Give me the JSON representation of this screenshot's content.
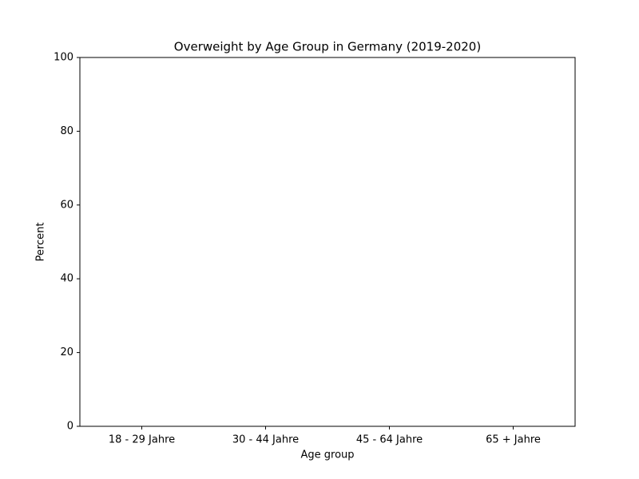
{
  "chart_data": {
    "type": "bar",
    "title": "Overweight by Age Group in Germany (2019-2020)",
    "x_label": "Age group",
    "y_label": "Percent",
    "categories": [
      "18 - 29 Jahre",
      "30 - 44 Jahre",
      "45 - 64 Jahre",
      "65 + Jahre"
    ],
    "ylim": [
      0,
      100
    ],
    "yticks": [
      0,
      20,
      40,
      60,
      80,
      100
    ]
  }
}
